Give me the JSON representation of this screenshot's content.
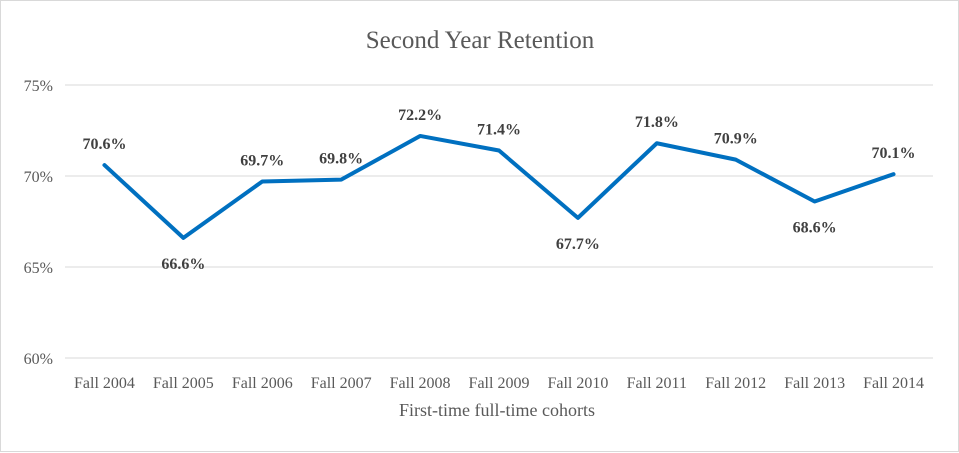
{
  "chart_data": {
    "type": "line",
    "title": "Second Year Retention",
    "xlabel": "First-time full-time cohorts",
    "ylabel": "",
    "categories": [
      "Fall 2004",
      "Fall 2005",
      "Fall 2006",
      "Fall 2007",
      "Fall 2008",
      "Fall 2009",
      "Fall 2010",
      "Fall 2011",
      "Fall 2012",
      "Fall 2013",
      "Fall 2014"
    ],
    "series": [
      {
        "values": [
          70.6,
          66.6,
          69.7,
          69.8,
          72.2,
          71.4,
          67.7,
          71.8,
          70.9,
          68.6,
          70.1
        ],
        "data_labels": [
          "70.6%",
          "66.6%",
          "69.7%",
          "69.8%",
          "72.2%",
          "71.4%",
          "67.7%",
          "71.8%",
          "70.9%",
          "68.6%",
          "70.1%"
        ],
        "color": "#0070c0"
      }
    ],
    "ylim": [
      60,
      75
    ],
    "yticks": [
      60,
      65,
      70,
      75
    ],
    "ytick_labels": [
      "60%",
      "65%",
      "70%",
      "75%"
    ],
    "grid": true,
    "legend": "none"
  }
}
